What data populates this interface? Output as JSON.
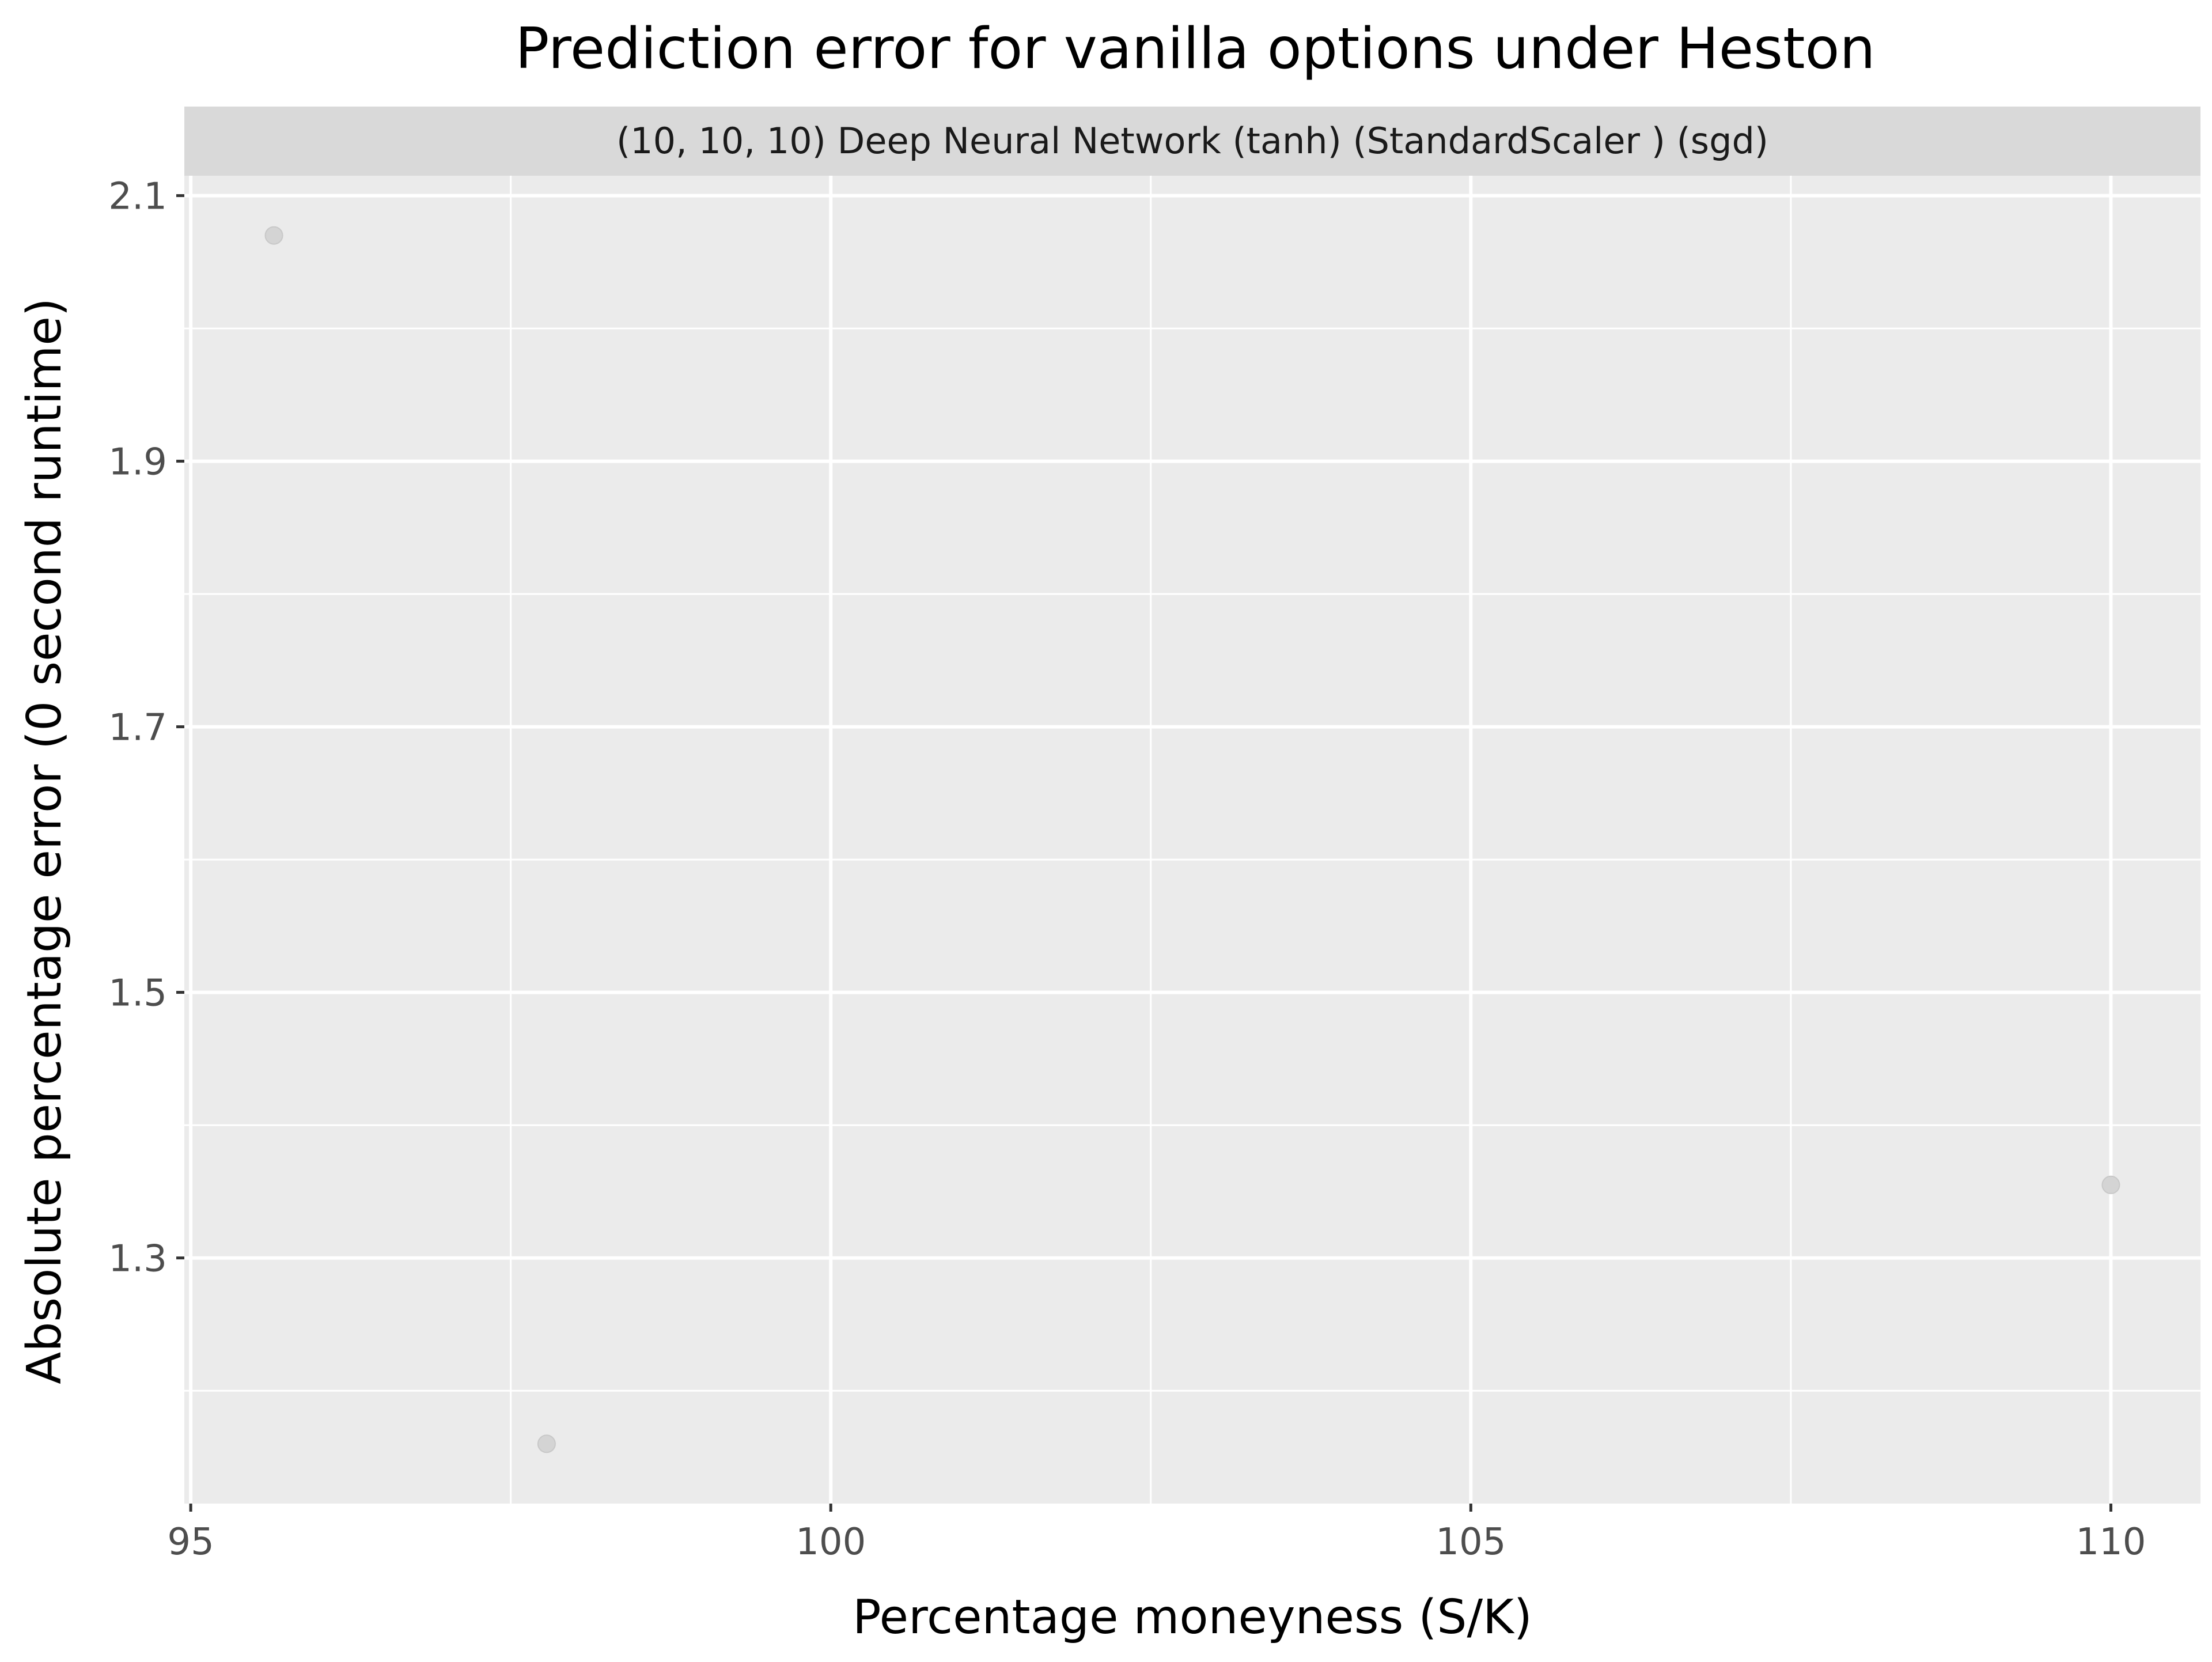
{
  "chart_data": {
    "type": "scatter",
    "title": "Prediction error for vanilla options under Heston",
    "facet_label": "(10, 10, 10) Deep Neural Network (tanh) (StandardScaler ) (sgd)",
    "xlabel": "Percentage moneyness (S/K)",
    "ylabel": "Absolute percentage error (0 second runtime)",
    "xlim": [
      94.95,
      110.7
    ],
    "ylim": [
      1.115,
      2.115
    ],
    "x_ticks": [
      95,
      100,
      105,
      110
    ],
    "x_tick_labels": [
      "95",
      "100",
      "105",
      "110"
    ],
    "y_ticks": [
      1.3,
      1.5,
      1.7,
      1.9,
      2.1
    ],
    "y_tick_labels": [
      "1.3",
      "1.5",
      "1.7",
      "1.9",
      "2.1"
    ],
    "grid": true,
    "colors": {
      "panel_background": "#EBEBEB",
      "strip_background": "#D9D9D9",
      "grid": "#FFFFFF",
      "point": "#D4D4D4"
    },
    "points": [
      {
        "x": 95.65,
        "y": 2.07
      },
      {
        "x": 97.78,
        "y": 1.16
      },
      {
        "x": 110.0,
        "y": 1.355
      }
    ]
  }
}
